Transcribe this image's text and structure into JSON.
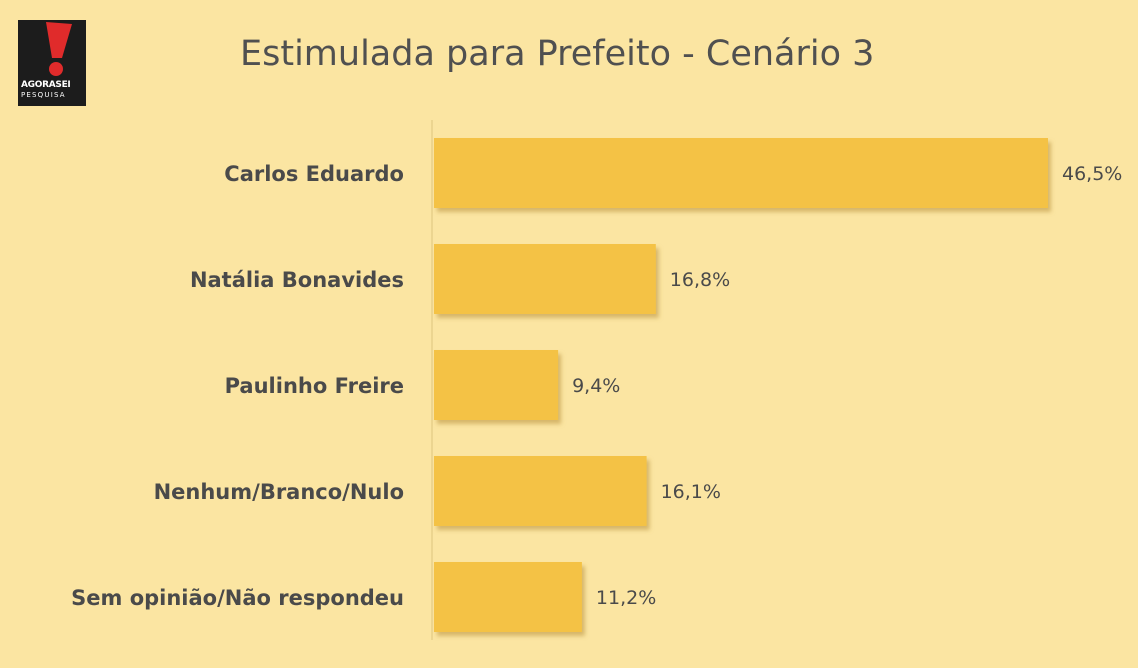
{
  "logo": {
    "brand": "AGORASEI",
    "brand_sub": "PESQUISA",
    "icon": "exclamation-icon",
    "accent": "#e02b2b"
  },
  "colors": {
    "background": "#fbe5a2",
    "bar": "#f4c244",
    "bar_shadow": "#c9a24a",
    "text": "#4a4a4a"
  },
  "chart_data": {
    "type": "bar",
    "orientation": "horizontal",
    "title": "Estimulada para Prefeito - Cenário 3",
    "categories": [
      "Carlos Eduardo",
      "Natália Bonavides",
      "Paulinho Freire",
      "Nenhum/Branco/Nulo",
      "Sem opinião/Não respondeu"
    ],
    "values": [
      46.5,
      16.8,
      9.4,
      16.1,
      11.2
    ],
    "value_labels": [
      "46,5%",
      "16,8%",
      "9,4%",
      "16,1%",
      "11,2%"
    ],
    "xlim": [
      0,
      46.5
    ],
    "grid": false,
    "legend": "none"
  }
}
